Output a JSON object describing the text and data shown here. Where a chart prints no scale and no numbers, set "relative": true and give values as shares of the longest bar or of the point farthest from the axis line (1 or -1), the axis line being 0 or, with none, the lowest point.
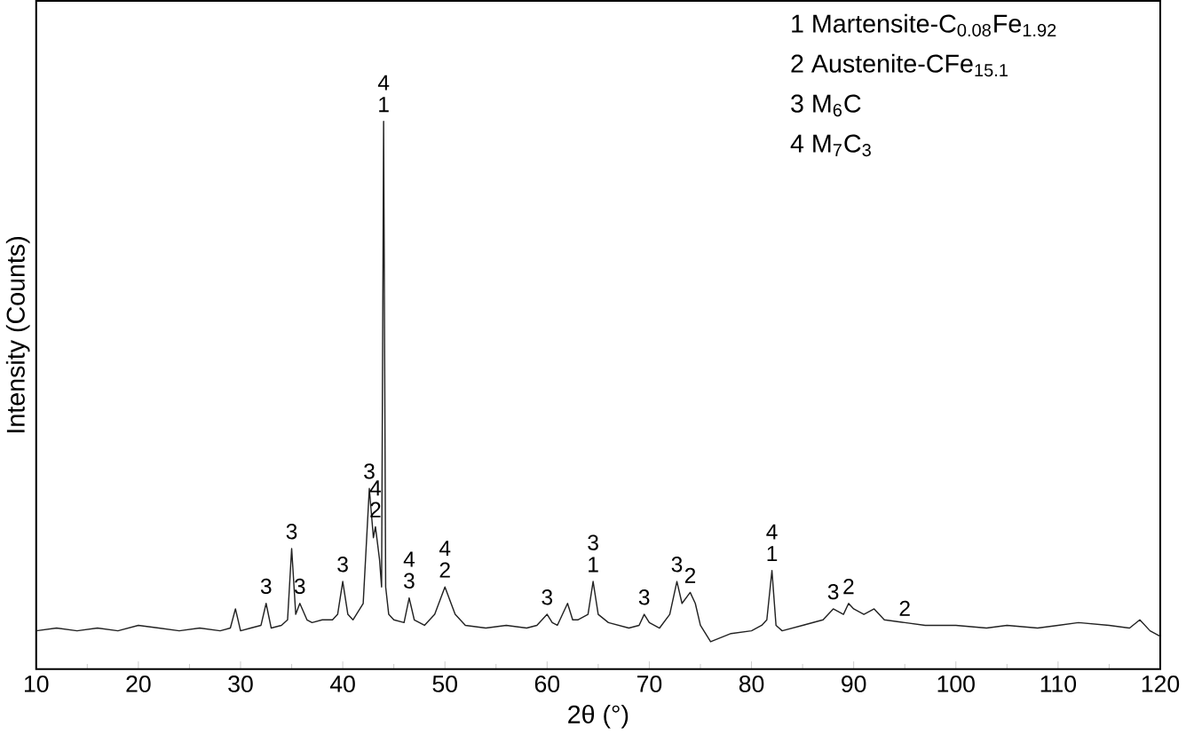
{
  "chart_data": {
    "type": "line",
    "relative": true,
    "xlabel": "2θ (°)",
    "ylabel": "Intensity (Counts)",
    "xlim": [
      10,
      120
    ],
    "xticks": [
      10,
      20,
      30,
      40,
      50,
      60,
      70,
      80,
      90,
      100,
      110,
      120
    ],
    "x": [
      10,
      12,
      14,
      16,
      18,
      20,
      22,
      24,
      26,
      28,
      29,
      29.5,
      30,
      31,
      32,
      32.5,
      33,
      34,
      34.6,
      35,
      35.4,
      35.8,
      36.5,
      37,
      38,
      39,
      39.5,
      40,
      40.5,
      41,
      42,
      42.6,
      43,
      43.2,
      43.6,
      43.8,
      44,
      44.2,
      44.5,
      45,
      46,
      46.5,
      47,
      48,
      49,
      50,
      50.6,
      51,
      52,
      54,
      56,
      58,
      59,
      60,
      60.5,
      61,
      62,
      62.5,
      63,
      64,
      64.5,
      65,
      66,
      68,
      69,
      69.5,
      70,
      71,
      72,
      72.7,
      73.2,
      74,
      74.5,
      75,
      76,
      78,
      80,
      81,
      81.5,
      82,
      82.4,
      83,
      85,
      87,
      88,
      89,
      89.5,
      90,
      91,
      92,
      93,
      95,
      97,
      100,
      103,
      105,
      108,
      110,
      112,
      115,
      117,
      118,
      119,
      120
    ],
    "series": [
      {
        "color": "#222222",
        "values": [
          0.07,
          0.075,
          0.07,
          0.075,
          0.07,
          0.08,
          0.075,
          0.07,
          0.075,
          0.07,
          0.075,
          0.11,
          0.07,
          0.075,
          0.08,
          0.12,
          0.075,
          0.08,
          0.09,
          0.22,
          0.1,
          0.12,
          0.09,
          0.085,
          0.09,
          0.09,
          0.1,
          0.16,
          0.1,
          0.09,
          0.12,
          0.33,
          0.24,
          0.26,
          0.2,
          0.15,
          1.0,
          0.15,
          0.1,
          0.09,
          0.085,
          0.13,
          0.09,
          0.08,
          0.1,
          0.15,
          0.12,
          0.1,
          0.08,
          0.075,
          0.08,
          0.075,
          0.08,
          0.1,
          0.085,
          0.08,
          0.12,
          0.09,
          0.09,
          0.1,
          0.16,
          0.1,
          0.085,
          0.075,
          0.08,
          0.1,
          0.085,
          0.075,
          0.1,
          0.16,
          0.12,
          0.14,
          0.12,
          0.08,
          0.05,
          0.065,
          0.07,
          0.08,
          0.09,
          0.18,
          0.08,
          0.07,
          0.08,
          0.09,
          0.11,
          0.1,
          0.12,
          0.11,
          0.1,
          0.11,
          0.09,
          0.085,
          0.08,
          0.08,
          0.075,
          0.08,
          0.075,
          0.08,
          0.085,
          0.08,
          0.075,
          0.09,
          0.07,
          0.06
        ]
      }
    ],
    "annotations": [
      {
        "text": "3",
        "x": 32.5,
        "y": 0.12
      },
      {
        "text": "3",
        "x": 35,
        "y": 0.22
      },
      {
        "text": "3",
        "x": 35.8,
        "y": 0.12
      },
      {
        "text": "3",
        "x": 40,
        "y": 0.16
      },
      {
        "text": "3",
        "x": 42.6,
        "y": 0.33
      },
      {
        "text": "2",
        "x": 43.2,
        "y": 0.26
      },
      {
        "text": "4",
        "x": 43.2,
        "y": 0.26
      },
      {
        "text": "1",
        "x": 44,
        "y": 1.0
      },
      {
        "text": "4",
        "x": 44,
        "y": 1.0
      },
      {
        "text": "3",
        "x": 46.5,
        "y": 0.13
      },
      {
        "text": "4",
        "x": 46.5,
        "y": 0.13
      },
      {
        "text": "2",
        "x": 50,
        "y": 0.15
      },
      {
        "text": "4",
        "x": 50,
        "y": 0.15
      },
      {
        "text": "3",
        "x": 60,
        "y": 0.1
      },
      {
        "text": "1",
        "x": 64.5,
        "y": 0.16
      },
      {
        "text": "3",
        "x": 64.5,
        "y": 0.16
      },
      {
        "text": "3",
        "x": 69.5,
        "y": 0.1
      },
      {
        "text": "3",
        "x": 72.7,
        "y": 0.16
      },
      {
        "text": "2",
        "x": 74,
        "y": 0.14
      },
      {
        "text": "1",
        "x": 82,
        "y": 0.18
      },
      {
        "text": "4",
        "x": 82,
        "y": 0.18
      },
      {
        "text": "3",
        "x": 88,
        "y": 0.11
      },
      {
        "text": "2",
        "x": 89.5,
        "y": 0.12
      },
      {
        "text": "2",
        "x": 95,
        "y": 0.08
      },
      "1 Martensite-C$_{0.08}$Fe$_{1.92}$",
      "2 Austenite-CFe$_{15.1}$",
      "3 M$_{6}$C",
      "4 M$_{7}$C$_{3}$"
    ]
  }
}
